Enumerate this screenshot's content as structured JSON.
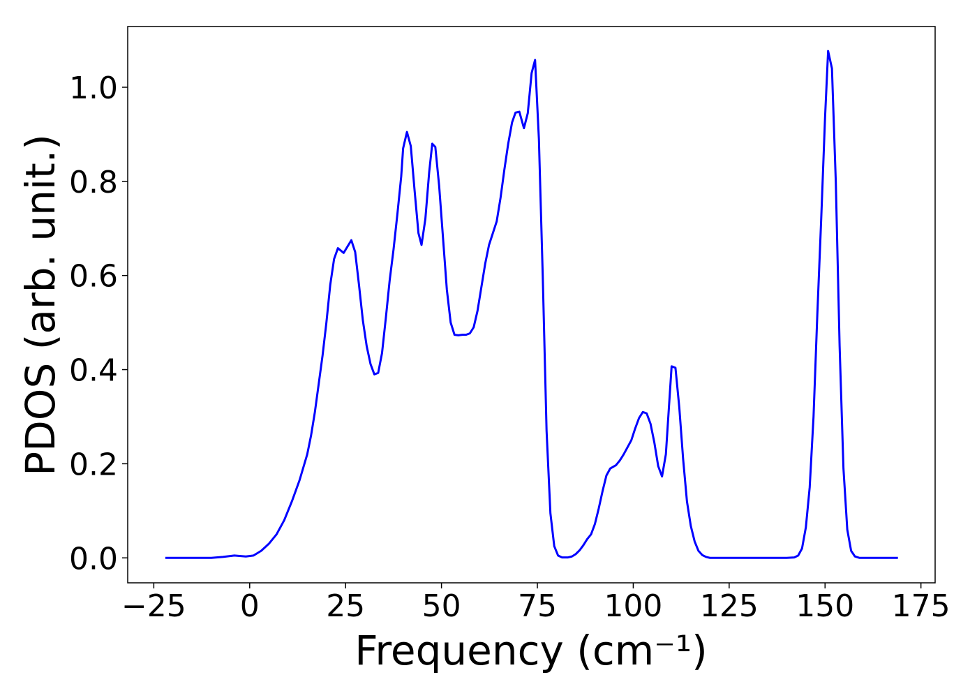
{
  "chart_data": {
    "type": "line",
    "x_label": "Frequency (cm⁻¹)",
    "y_label": "PDOS (arb. unit.)",
    "xlim": [
      -31.8,
      178.7
    ],
    "ylim": [
      -0.053,
      1.129
    ],
    "xticks": [
      {
        "value": -25,
        "label": "−25"
      },
      0,
      25,
      50,
      75,
      100,
      125,
      150,
      175
    ],
    "yticks": [
      {
        "value": 0,
        "label": "0.0"
      },
      {
        "value": 0.2,
        "label": "0.2"
      },
      {
        "value": 0.4,
        "label": "0.4"
      },
      {
        "value": 0.6,
        "label": "0.6"
      },
      {
        "value": 0.8,
        "label": "0.8"
      },
      {
        "value": 1,
        "label": "1.0"
      }
    ],
    "grid": false,
    "series": [
      {
        "color": "#0000ff",
        "x": [
          -22,
          -15,
          -10,
          -7,
          -4,
          -1,
          1,
          3,
          5,
          7,
          9,
          11,
          13,
          15,
          16,
          17,
          18,
          19,
          20,
          21,
          22,
          23,
          24.5,
          26.5,
          27.5,
          28.5,
          29.5,
          30.5,
          31.5,
          32.5,
          33.5,
          34.5,
          35.5,
          36.5,
          37.5,
          38.5,
          39.5,
          40,
          41,
          42,
          43,
          44,
          44.8,
          45.8,
          46.8,
          47.6,
          48.4,
          49.4,
          50.4,
          51.4,
          52.4,
          53.4,
          54.4,
          55.4,
          56.4,
          57.4,
          58.4,
          59.4,
          60.4,
          61.4,
          62.4,
          63.4,
          64.4,
          65.4,
          66.4,
          67.4,
          68.4,
          69.3,
          70.3,
          71.5,
          72.5,
          73.5,
          74.4,
          75.4,
          76.4,
          77.4,
          78.4,
          79.4,
          80.4,
          81.4,
          83,
          84,
          85,
          86,
          87,
          88,
          89,
          90,
          91,
          92,
          93,
          94,
          95.5,
          96.5,
          97.5,
          98.5,
          99.5,
          100.5,
          101.5,
          102.5,
          103.5,
          104.5,
          105.5,
          106.5,
          107.5,
          108.5,
          109.3,
          110,
          111,
          112,
          113,
          114,
          115,
          116,
          117,
          118,
          119,
          120,
          130,
          140,
          142,
          143,
          144,
          145,
          146,
          147,
          148,
          149,
          150,
          150.8,
          151.8,
          152.8,
          153.8,
          154.8,
          155.8,
          156.8,
          157.8,
          159,
          169
        ],
        "values": [
          0,
          0,
          0,
          0.002,
          0.005,
          0.003,
          0.005,
          0.015,
          0.03,
          0.05,
          0.08,
          0.12,
          0.165,
          0.22,
          0.26,
          0.31,
          0.37,
          0.43,
          0.5,
          0.58,
          0.635,
          0.658,
          0.648,
          0.675,
          0.65,
          0.58,
          0.505,
          0.45,
          0.412,
          0.39,
          0.393,
          0.435,
          0.51,
          0.59,
          0.655,
          0.73,
          0.81,
          0.87,
          0.905,
          0.875,
          0.78,
          0.69,
          0.665,
          0.72,
          0.82,
          0.88,
          0.873,
          0.79,
          0.68,
          0.57,
          0.5,
          0.474,
          0.473,
          0.474,
          0.474,
          0.477,
          0.49,
          0.525,
          0.575,
          0.625,
          0.665,
          0.69,
          0.715,
          0.765,
          0.825,
          0.88,
          0.925,
          0.946,
          0.948,
          0.913,
          0.945,
          1.03,
          1.058,
          0.89,
          0.6,
          0.27,
          0.095,
          0.025,
          0.005,
          0.001,
          0.001,
          0.003,
          0.008,
          0.016,
          0.027,
          0.04,
          0.05,
          0.072,
          0.105,
          0.142,
          0.175,
          0.19,
          0.197,
          0.207,
          0.22,
          0.235,
          0.25,
          0.275,
          0.297,
          0.31,
          0.307,
          0.285,
          0.245,
          0.195,
          0.173,
          0.22,
          0.32,
          0.407,
          0.404,
          0.32,
          0.21,
          0.12,
          0.068,
          0.035,
          0.015,
          0.006,
          0.002,
          0,
          0,
          0,
          0.001,
          0.005,
          0.02,
          0.065,
          0.15,
          0.3,
          0.52,
          0.72,
          0.935,
          1.077,
          1.04,
          0.8,
          0.45,
          0.19,
          0.06,
          0.015,
          0.003,
          0,
          0
        ]
      }
    ]
  }
}
